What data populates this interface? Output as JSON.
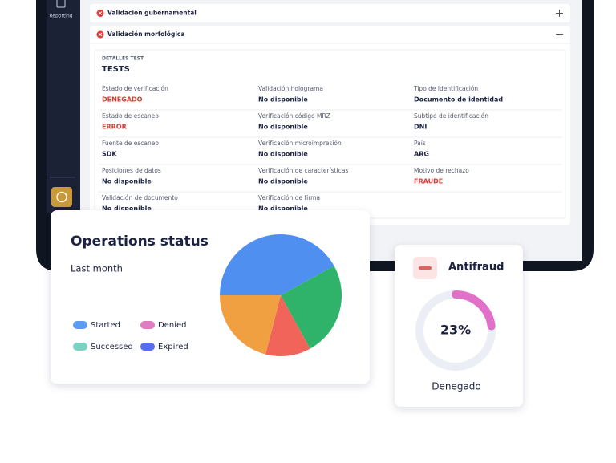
{
  "sidebar": {
    "items": [
      {
        "label": "Reporting"
      }
    ]
  },
  "accordion": [
    {
      "title": "Validación gubernamental"
    },
    {
      "title": "Validación morfológica"
    }
  ],
  "details": {
    "caption": "DETALLES TEST",
    "title": "TESTS",
    "rows": [
      [
        {
          "label": "Estado de verificación",
          "value": "DENEGADO",
          "color": "#e53935"
        },
        {
          "label": "Validación holograma",
          "value": "No disponible"
        },
        {
          "label": "Tipo de identificación",
          "value": "Documento de identidad"
        }
      ],
      [
        {
          "label": "Estado de escaneo",
          "value": "ERROR",
          "color": "#e53935"
        },
        {
          "label": "Verificación código MRZ",
          "value": "No disponible"
        },
        {
          "label": "Subtipo de identificación",
          "value": "DNI"
        }
      ],
      [
        {
          "label": "Fuente de escaneo",
          "value": "SDK"
        },
        {
          "label": "Verificación microimpresión",
          "value": "No disponible"
        },
        {
          "label": "País",
          "value": "ARG"
        }
      ],
      [
        {
          "label": "Posiciones de datos",
          "value": "No disponible"
        },
        {
          "label": "Verificación de características",
          "value": "No disponible"
        },
        {
          "label": "Motivo de rechazo",
          "value": "FRAUDE",
          "color": "#e53935"
        }
      ],
      [
        {
          "label": "Validación de documento",
          "value": "No disponible"
        },
        {
          "label": "Verificación de firma",
          "value": "No disponible"
        }
      ]
    ]
  },
  "chart_data": [
    {
      "type": "pie",
      "title": "Operations status",
      "subtitle": "Last month",
      "categories": [
        "Started",
        "Successed",
        "Denied",
        "Expired"
      ],
      "values": [
        42,
        25,
        12,
        21
      ],
      "colors": [
        "#4f8ff0",
        "#2fb36a",
        "#f0645a",
        "#f0a040"
      ],
      "legend_colors": [
        "#5b9bf0",
        "#7ad2c0",
        "#e07cc0",
        "#5a6cf0"
      ]
    },
    {
      "type": "donut",
      "title": "Antifraud",
      "caption": "Denegado",
      "values": [
        23
      ],
      "value_labels": [
        "23%"
      ],
      "color": "#e070c8",
      "track_color": "#eceef6"
    }
  ]
}
